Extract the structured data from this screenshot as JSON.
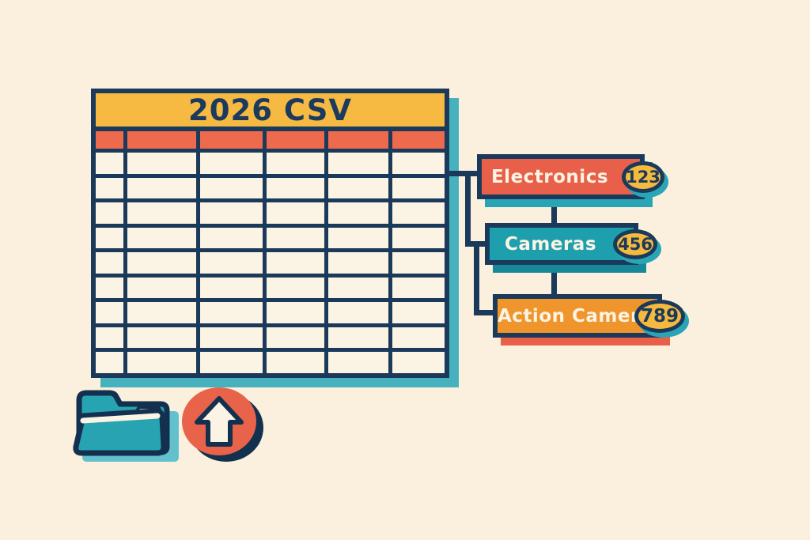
{
  "background_color": "#FAF0DD",
  "palette": {
    "navy": "#1B3A5B",
    "cream": "#FBF3E3",
    "yellow": "#F6BA42",
    "coral": "#EE6A4D",
    "teal": "#23A2B0",
    "teal_light": "#47B1BE",
    "orange": "#F0952B"
  },
  "spreadsheet": {
    "title": "2026 CSV",
    "title_bg": "#F6BA42",
    "header_row_color": "#EE6A4D",
    "columns": 6,
    "rows": 9,
    "shadow_color": "#47B1BE"
  },
  "hierarchy": {
    "badge_color": "#F5B93E",
    "nodes": [
      {
        "label": "Electronics",
        "count": "123",
        "color": "#E8604A",
        "shadow": "#2AA5B5"
      },
      {
        "label": "Cameras",
        "count": "456",
        "color": "#1E9FAD",
        "shadow": "#17889A"
      },
      {
        "label": "Action Cameras",
        "count": "789",
        "color": "#F0952B",
        "shadow": "#E8604A"
      }
    ]
  },
  "icons": {
    "folder": "folder-icon",
    "upload": "upload-arrow-icon",
    "folder_color": "#27A3B2",
    "upload_color": "#E8634A"
  }
}
